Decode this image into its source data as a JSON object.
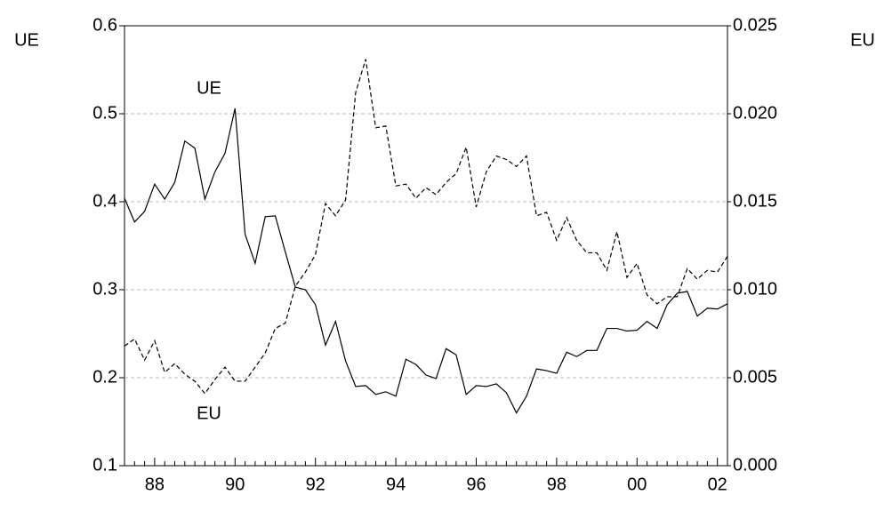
{
  "chart_data": {
    "type": "line",
    "ylabel": "UE",
    "y2label": "EU",
    "categories": [
      null,
      null,
      null,
      "88",
      null,
      null,
      null,
      null,
      null,
      null,
      null,
      "90",
      null,
      null,
      null,
      null,
      null,
      null,
      null,
      "92",
      null,
      null,
      null,
      null,
      null,
      null,
      null,
      "94",
      null,
      null,
      null,
      null,
      null,
      null,
      null,
      "96",
      null,
      null,
      null,
      null,
      null,
      null,
      null,
      "98",
      null,
      null,
      null,
      null,
      null,
      null,
      null,
      "00",
      null,
      null,
      null,
      null,
      null,
      null,
      null,
      "02",
      null
    ],
    "series": [
      {
        "name": "UE",
        "color": "#000000",
        "style": "solid",
        "axis": "y",
        "values": [
          0.404,
          0.377,
          0.389,
          0.42,
          0.403,
          0.422,
          0.469,
          0.461,
          0.403,
          0.434,
          0.455,
          0.506,
          0.363,
          0.33,
          0.383,
          0.384,
          0.343,
          0.303,
          0.3,
          0.283,
          0.237,
          0.264,
          0.219,
          0.19,
          0.191,
          0.181,
          0.184,
          0.179,
          0.221,
          0.215,
          0.203,
          0.199,
          0.233,
          0.226,
          0.181,
          0.191,
          0.19,
          0.193,
          0.183,
          0.16,
          0.179,
          0.21,
          0.208,
          0.205,
          0.229,
          0.224,
          0.231,
          0.231,
          0.256,
          0.256,
          0.253,
          0.254,
          0.264,
          0.256,
          0.283,
          0.296,
          0.298,
          0.27,
          0.279,
          0.278,
          0.284
        ]
      },
      {
        "name": "EU",
        "color": "#000000",
        "style": "dashed",
        "axis": "y2",
        "values": [
          0.0068,
          0.0072,
          0.006,
          0.0071,
          0.0053,
          0.0058,
          0.0052,
          0.0048,
          0.0041,
          0.0049,
          0.0056,
          0.0048,
          0.0048,
          0.0056,
          0.0064,
          0.0078,
          0.0081,
          0.0102,
          0.011,
          0.012,
          0.0149,
          0.0142,
          0.0151,
          0.0212,
          0.0231,
          0.0192,
          0.0193,
          0.0159,
          0.016,
          0.0152,
          0.0158,
          0.0154,
          0.0161,
          0.0166,
          0.0181,
          0.0147,
          0.0167,
          0.0176,
          0.0174,
          0.017,
          0.0176,
          0.0142,
          0.0144,
          0.0128,
          0.0141,
          0.0128,
          0.0121,
          0.0121,
          0.0111,
          0.0133,
          0.0107,
          0.0115,
          0.0097,
          0.0092,
          0.0096,
          0.0096,
          0.0112,
          0.0106,
          0.0111,
          0.011,
          0.0119
        ]
      }
    ],
    "ylim": [
      0.1,
      0.6
    ],
    "yticks": [
      0.1,
      0.2,
      0.3,
      0.4,
      0.5,
      0.6
    ],
    "y2lim": [
      0,
      0.025
    ],
    "y2ticks": [
      {
        "value": 0,
        "label": "0.000"
      },
      0.005,
      {
        "value": 0.01,
        "label": "0.010"
      },
      0.015,
      {
        "value": 0.02,
        "label": "0.020"
      },
      0.025
    ],
    "grid": true
  }
}
